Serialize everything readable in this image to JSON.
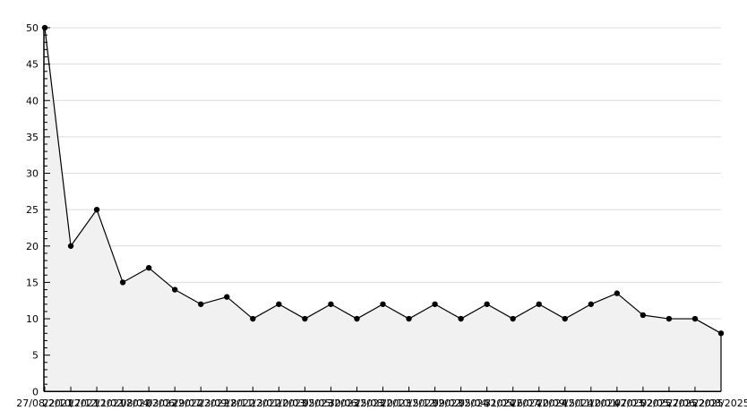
{
  "chart_data": {
    "type": "area",
    "title": "",
    "xlabel": "",
    "ylabel": "",
    "x_labels": [
      "27/08/2021",
      "22/10/2021",
      "17/12/2021",
      "11/02/2022",
      "08/04/2022",
      "03/06/2022",
      "29/07/2022",
      "23/09/2022",
      "18/11/2022",
      "13/01/2023",
      "10/03/2023",
      "05/05/2023",
      "30/06/2023",
      "25/08/2023",
      "20/10/2023",
      "15/12/2023",
      "09/02/2024",
      "05/04/2024",
      "31/05/2024",
      "26/07/2024",
      "20/09/2024",
      "15/11/2024",
      "10/01/2025",
      "07/03/2025",
      "02/05/2025",
      "27/06/2025",
      "22/08/2025"
    ],
    "values": [
      50,
      20,
      25,
      15,
      17,
      14,
      12,
      13,
      10,
      12,
      10,
      12,
      10,
      12,
      10,
      12,
      10,
      12,
      10,
      12,
      10,
      12,
      13.5,
      10.5,
      10,
      10,
      8
    ],
    "ylim": [
      0,
      50
    ],
    "y_ticks": [
      0,
      5,
      10,
      15,
      20,
      25,
      30,
      35,
      40,
      45,
      50
    ],
    "y_minor_tick_step": 1,
    "grid": "horizontal",
    "legend": "none",
    "marker": "filled-circle",
    "style": {
      "background": "#ffffff",
      "area_fill": "#f1f1f1",
      "line_color": "#000000",
      "marker_color": "#000000",
      "grid_color": "#dcdcdc",
      "axis_color": "#000000",
      "label_color": "#000000",
      "font_size_px": 11
    }
  }
}
